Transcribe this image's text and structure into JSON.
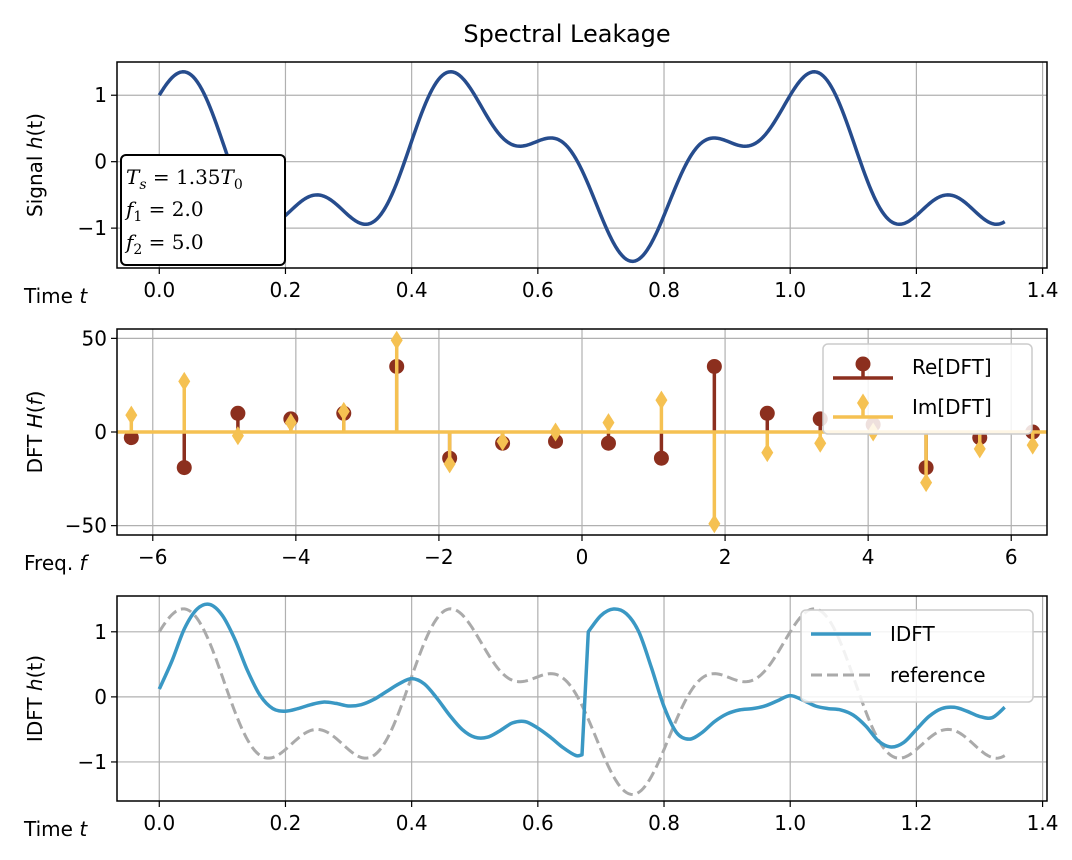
{
  "chart_data": [
    {
      "type": "line",
      "title": "Spectral Leakage",
      "ylabel": "Signal h(t)",
      "xlabel": "Time t",
      "xlim": [
        -0.067,
        1.407
      ],
      "ylim": [
        -1.6,
        1.5
      ],
      "xticks": [
        0.0,
        0.2,
        0.4,
        0.6,
        0.8,
        1.0,
        1.2,
        1.4
      ],
      "xtick_labels": [
        "0.0",
        "0.2",
        "0.4",
        "0.6",
        "0.8",
        "1.0",
        "1.2",
        "1.4"
      ],
      "yticks": [
        1,
        0,
        -1
      ],
      "ytick_labels": [
        "1",
        "0",
        "−1"
      ],
      "grid": true,
      "series": [
        {
          "function": "cos(2*pi*2.0*t) + 0.5*sin(2*pi*5.0*t)",
          "t_range": [
            0,
            1.34
          ],
          "color": "#264c8d"
        }
      ],
      "info_box": {
        "lines": [
          "T_s = 1.35T_0",
          "f_1 = 2.0",
          "f_2 = 5.0"
        ],
        "Ts_factor": "1.35",
        "f1": "2.0",
        "f2": "5.0",
        "placement": "left"
      }
    },
    {
      "type": "stem",
      "ylabel": "DFT H(f)",
      "xlabel": "Freq. f",
      "xlim": [
        -6.5,
        6.5
      ],
      "ylim": [
        -55,
        55
      ],
      "xticks": [
        -6,
        -4,
        -2,
        0,
        2,
        4,
        6
      ],
      "xtick_labels": [
        "−6",
        "−4",
        "−2",
        "0",
        "2",
        "4",
        "6"
      ],
      "yticks": [
        50,
        0,
        -50
      ],
      "ytick_labels": [
        "50",
        "0",
        "−50"
      ],
      "grid": true,
      "legend": {
        "placement": "upper-right",
        "entries": [
          "Re[DFT]",
          "Im[DFT]"
        ]
      },
      "x": [
        -6.3,
        -5.56,
        -4.81,
        -4.07,
        -3.33,
        -2.59,
        -1.85,
        -1.11,
        -0.37,
        0.37,
        1.11,
        1.85,
        2.59,
        3.33,
        4.07,
        4.81,
        5.56,
        6.3
      ],
      "series": [
        {
          "name": "Re[DFT]",
          "color": "#8c2f1e",
          "marker": "circle",
          "values": [
            -3,
            -19,
            10,
            7,
            10,
            35,
            -14,
            -6,
            -5,
            -6,
            -14,
            35,
            10,
            7,
            4,
            -19,
            -3,
            0
          ]
        },
        {
          "name": "Im[DFT]",
          "color": "#f5c152",
          "marker": "diamond",
          "values": [
            9,
            27,
            -2,
            5,
            11,
            49,
            -17,
            -5,
            0,
            5,
            17,
            -49,
            -11,
            -6,
            0,
            -27,
            -9,
            -7
          ]
        }
      ]
    },
    {
      "type": "line",
      "ylabel": "IDFT h(t)",
      "xlabel": "Time t",
      "xlim": [
        -0.067,
        1.407
      ],
      "ylim": [
        -1.6,
        1.55
      ],
      "xticks": [
        0.0,
        0.2,
        0.4,
        0.6,
        0.8,
        1.0,
        1.2,
        1.4
      ],
      "xtick_labels": [
        "0.0",
        "0.2",
        "0.4",
        "0.6",
        "0.8",
        "1.0",
        "1.2",
        "1.4"
      ],
      "yticks": [
        1,
        0,
        -1
      ],
      "ytick_labels": [
        "1",
        "0",
        "−1"
      ],
      "grid": true,
      "legend": {
        "placement": "upper-right",
        "entries": [
          "IDFT",
          "reference"
        ]
      },
      "series": [
        {
          "name": "IDFT",
          "color": "#3a98c4",
          "x": [
            0.0,
            0.02,
            0.04,
            0.06,
            0.08,
            0.1,
            0.12,
            0.14,
            0.16,
            0.18,
            0.2,
            0.22,
            0.24,
            0.26,
            0.28,
            0.3,
            0.32,
            0.34,
            0.36,
            0.38,
            0.4,
            0.42,
            0.44,
            0.46,
            0.48,
            0.5,
            0.52,
            0.54,
            0.56,
            0.58,
            0.6,
            0.62,
            0.64,
            0.66,
            0.67,
            0.68,
            0.7,
            0.72,
            0.74,
            0.76,
            0.78,
            0.8,
            0.82,
            0.84,
            0.86,
            0.88,
            0.9,
            0.92,
            0.94,
            0.96,
            0.98,
            1.0,
            1.02,
            1.04,
            1.06,
            1.08,
            1.1,
            1.12,
            1.14,
            1.16,
            1.18,
            1.2,
            1.22,
            1.24,
            1.26,
            1.28,
            1.3,
            1.32,
            1.34
          ],
          "values": [
            0.12,
            0.55,
            1.05,
            1.35,
            1.42,
            1.25,
            0.88,
            0.4,
            0.02,
            -0.18,
            -0.22,
            -0.18,
            -0.12,
            -0.08,
            -0.1,
            -0.14,
            -0.12,
            -0.04,
            0.08,
            0.2,
            0.28,
            0.2,
            -0.02,
            -0.28,
            -0.5,
            -0.62,
            -0.62,
            -0.52,
            -0.4,
            -0.38,
            -0.48,
            -0.62,
            -0.78,
            -0.9,
            -0.89,
            1.0,
            1.25,
            1.35,
            1.28,
            1.0,
            0.45,
            -0.15,
            -0.55,
            -0.65,
            -0.55,
            -0.38,
            -0.26,
            -0.2,
            -0.18,
            -0.14,
            -0.06,
            0.02,
            -0.05,
            -0.14,
            -0.18,
            -0.2,
            -0.28,
            -0.45,
            -0.68,
            -0.77,
            -0.7,
            -0.5,
            -0.3,
            -0.18,
            -0.16,
            -0.22,
            -0.3,
            -0.32,
            -0.16
          ]
        },
        {
          "name": "reference",
          "color": "#aaaaaa",
          "dashed": true,
          "function": "cos(2*pi*2.0*t) + 0.5*sin(2*pi*5.0*t)",
          "t_range": [
            0,
            1.34
          ]
        }
      ]
    }
  ]
}
